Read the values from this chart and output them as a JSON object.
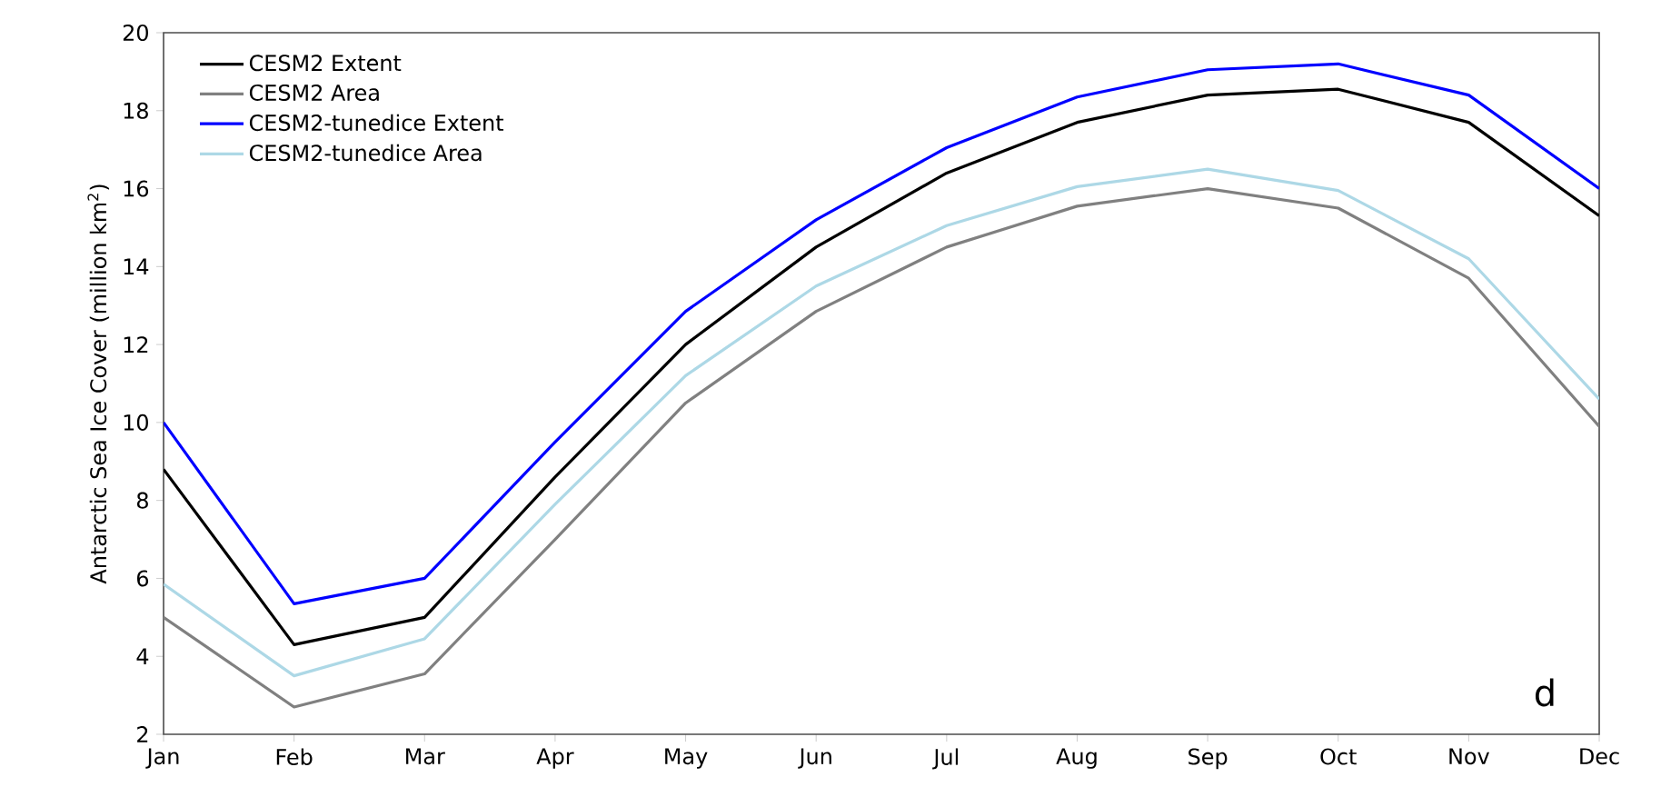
{
  "chart_data": {
    "type": "line",
    "ylabel": "Antarctic Sea Ice Cover (million km$^{2}$)",
    "categories": [
      "Jan",
      "Feb",
      "Mar",
      "Apr",
      "May",
      "Jun",
      "Jul",
      "Aug",
      "Sep",
      "Oct",
      "Nov",
      "Dec"
    ],
    "series": [
      {
        "name": "CESM2 Extent",
        "color": "#000000",
        "values": [
          8.8,
          4.3,
          5.0,
          8.6,
          12.0,
          14.5,
          16.4,
          17.7,
          18.4,
          18.55,
          17.7,
          15.3
        ]
      },
      {
        "name": "CESM2 Area",
        "color": "#808080",
        "values": [
          5.0,
          2.7,
          3.55,
          7.0,
          10.5,
          12.85,
          14.5,
          15.55,
          16.0,
          15.5,
          13.7,
          9.9
        ]
      },
      {
        "name": "CESM2-tunedice Extent",
        "color": "#0000ff",
        "values": [
          10.0,
          5.35,
          6.0,
          9.5,
          12.85,
          15.2,
          17.05,
          18.35,
          19.05,
          19.2,
          18.4,
          16.0
        ]
      },
      {
        "name": "CESM2-tunedice Area",
        "color": "#add8e6",
        "values": [
          5.85,
          3.5,
          4.45,
          7.9,
          11.2,
          13.5,
          15.05,
          16.05,
          16.5,
          15.95,
          14.2,
          10.6
        ]
      }
    ],
    "ylim": [
      2,
      20
    ],
    "yticks": [
      2,
      4,
      6,
      8,
      10,
      12,
      14,
      16,
      18,
      20
    ],
    "legend": "top left",
    "grid": false,
    "marker": "none",
    "line_style": "solid",
    "annotations": [
      "d"
    ]
  }
}
